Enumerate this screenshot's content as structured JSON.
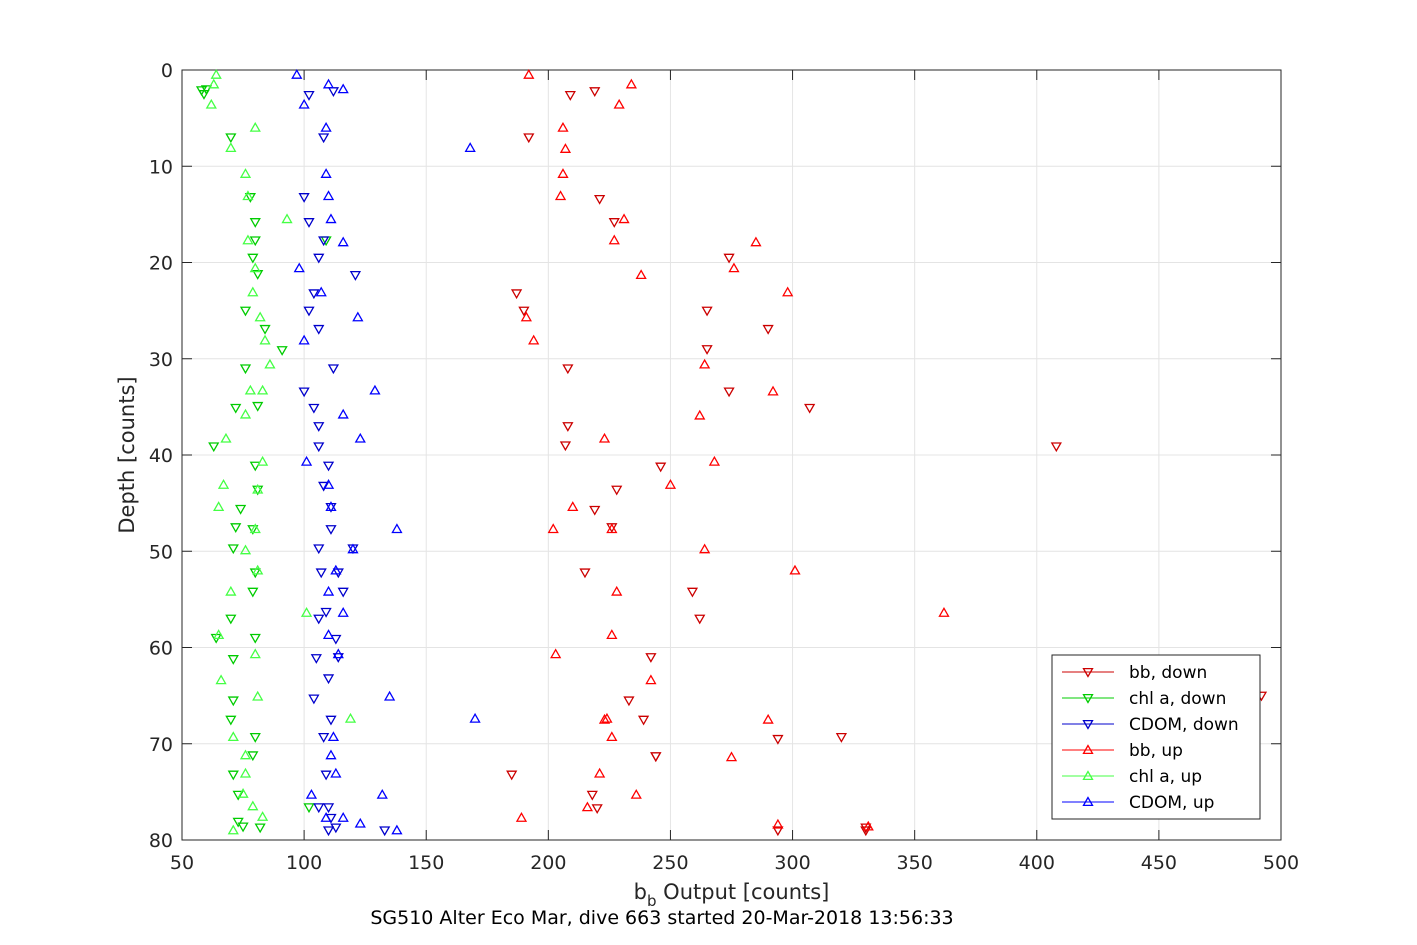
{
  "chart_data": {
    "type": "scatter",
    "xlabel_main": "b",
    "xlabel_sub": "b",
    "xlabel_rest": " Output [counts]",
    "ylabel": "Depth [counts]",
    "caption": "SG510 Alter Eco Mar, dive 663 started 20-Mar-2018 13:56:33",
    "xlim": [
      50,
      500
    ],
    "ylim": [
      0,
      80
    ],
    "y_reversed": true,
    "grid": true,
    "legend_position": "bottom-right",
    "x_ticks": [
      50,
      100,
      150,
      200,
      250,
      300,
      350,
      400,
      450,
      500
    ],
    "y_ticks": [
      0,
      10,
      20,
      30,
      40,
      50,
      60,
      70,
      80
    ],
    "x_tick_labels": [
      "50",
      "100",
      "150",
      "200",
      "250",
      "300",
      "350",
      "400",
      "450",
      "500"
    ],
    "y_tick_labels": [
      "0",
      "10",
      "20",
      "30",
      "40",
      "50",
      "60",
      "70",
      "80"
    ],
    "series": [
      {
        "name": "bb, down",
        "color": "#cc0000",
        "marker": "triangle-down",
        "x": [
          219,
          209,
          192,
          221,
          227,
          208,
          187,
          190,
          208,
          207,
          246,
          228,
          219,
          226,
          215,
          262,
          242,
          233,
          239,
          294
        ],
        "y": [
          2.2,
          2.6,
          7,
          13.4,
          15.8,
          31,
          23.2,
          25,
          37,
          39,
          41.2,
          43.6,
          45.7,
          47.5,
          52.2,
          57,
          61,
          65.5,
          67.5,
          69.5
        ]
      },
      {
        "name": "bb, down",
        "color": "#cc0000",
        "marker": "triangle-down",
        "x": [
          274,
          265,
          290,
          265,
          307,
          274,
          408,
          259,
          244,
          492,
          320,
          185,
          218,
          220,
          330,
          244,
          294,
          330
        ],
        "y": [
          19.5,
          25,
          26.9,
          29,
          35.1,
          33.4,
          39.1,
          54.2,
          71.3,
          65,
          69.3,
          73.2,
          75.3,
          76.7,
          78.7,
          71.3,
          79,
          79
        ]
      },
      {
        "name": "chl a, down",
        "color": "#00cc00",
        "marker": "triangle-down",
        "x": [
          58,
          59,
          60,
          70,
          109,
          78,
          80,
          80,
          79,
          81,
          76,
          84,
          91,
          76,
          81,
          72,
          63,
          80,
          81,
          74,
          72,
          79,
          71,
          80,
          79,
          70,
          80,
          64,
          71,
          71,
          80,
          70,
          79,
          71,
          73,
          75,
          82,
          102,
          73
        ],
        "y": [
          2.1,
          2.5,
          2,
          7,
          17.7,
          13.2,
          15.8,
          17.7,
          19.5,
          21.2,
          25,
          26.9,
          29.1,
          31,
          34.9,
          35.1,
          39.1,
          41.1,
          43.6,
          45.6,
          47.5,
          47.7,
          49.7,
          52.2,
          54.2,
          57,
          59,
          59,
          61.2,
          65.5,
          69.3,
          67.5,
          71.2,
          73.2,
          75.3,
          78.6,
          78.7,
          76.6,
          78.1
        ]
      },
      {
        "name": "CDOM, down",
        "color": "#0000cc",
        "marker": "triangle-down",
        "x": [
          112,
          102,
          108,
          100,
          102,
          108,
          106,
          121,
          104,
          102,
          106,
          112,
          100,
          104,
          106,
          106,
          110,
          108,
          111,
          111,
          106,
          120,
          107,
          114,
          116,
          106,
          113,
          109,
          105,
          114,
          110,
          111,
          109,
          110,
          113,
          108,
          104,
          106,
          111,
          110,
          133
        ],
        "y": [
          2.2,
          2.6,
          7,
          13.2,
          15.8,
          17.7,
          19.5,
          21.3,
          23.2,
          25,
          26.9,
          31,
          33.4,
          35.1,
          37,
          39.1,
          41.1,
          43.2,
          45.4,
          47.7,
          49.7,
          49.7,
          52.2,
          52.2,
          54.2,
          57,
          59.1,
          56.3,
          61.1,
          61,
          63.2,
          67.5,
          73.2,
          76.6,
          78.7,
          69.3,
          65.3,
          76.6,
          77.7,
          79.0,
          79.0
        ]
      },
      {
        "name": "bb, up",
        "color": "#ff0000",
        "marker": "triangle-up",
        "x": [
          192,
          234,
          229,
          206,
          207,
          206,
          205,
          231,
          227,
          285,
          276,
          238,
          298,
          191,
          194,
          264,
          292,
          262,
          223,
          268,
          250,
          210,
          202,
          226,
          264,
          301,
          228,
          362,
          226,
          203,
          242,
          223,
          224,
          226,
          290,
          275,
          221,
          236,
          216,
          189,
          294,
          331
        ],
        "y": [
          0.5,
          1.5,
          3.6,
          6,
          8.2,
          10.8,
          13.1,
          15.5,
          17.7,
          17.9,
          20.6,
          21.3,
          23.1,
          25.7,
          28.1,
          30.6,
          33.4,
          35.9,
          38.3,
          40.7,
          43.1,
          45.4,
          47.7,
          47.7,
          49.8,
          52,
          54.2,
          56.4,
          58.7,
          60.7,
          63.4,
          67.5,
          67.4,
          69.3,
          67.5,
          71.4,
          73.1,
          75.3,
          76.6,
          77.7,
          78.4,
          78.6
        ]
      },
      {
        "name": "chl a, up",
        "color": "#44ff44",
        "marker": "triangle-up",
        "x": [
          64,
          63,
          62,
          80,
          70,
          76,
          77,
          93,
          77,
          80,
          79,
          82,
          84,
          86,
          78,
          83,
          76,
          68,
          83,
          81,
          67,
          65,
          80,
          76,
          81,
          70,
          101,
          65,
          80,
          66,
          81,
          119,
          71,
          76,
          76,
          79,
          83,
          75,
          71
        ],
        "y": [
          0.5,
          1.5,
          3.6,
          6,
          8.1,
          10.8,
          13.1,
          15.5,
          17.7,
          20.6,
          23.1,
          25.7,
          28.1,
          30.6,
          33.3,
          33.3,
          35.8,
          38.3,
          40.7,
          43.6,
          43.1,
          45.4,
          47.7,
          49.9,
          52,
          54.2,
          56.4,
          58.7,
          60.7,
          63.4,
          65.1,
          67.4,
          69.3,
          71.2,
          73.1,
          76.5,
          77.6,
          75.2,
          79.0
        ]
      },
      {
        "name": "CDOM, up",
        "color": "#0000ff",
        "marker": "triangle-up",
        "x": [
          97,
          110,
          116,
          100,
          109,
          168,
          109,
          110,
          111,
          116,
          98,
          107,
          122,
          100,
          129,
          116,
          123,
          101,
          110,
          111,
          138,
          120,
          113,
          110,
          116,
          110,
          114,
          135,
          170,
          112,
          111,
          113,
          132,
          103,
          109,
          123,
          116,
          138
        ],
        "y": [
          0.5,
          1.5,
          2,
          3.6,
          6,
          8.1,
          10.8,
          13.1,
          15.5,
          17.9,
          20.6,
          23.1,
          25.7,
          28.1,
          33.3,
          35.8,
          38.3,
          40.7,
          43.1,
          45.4,
          47.7,
          49.8,
          52,
          54.2,
          56.4,
          58.7,
          60.7,
          65.1,
          67.4,
          69.3,
          71.2,
          73.1,
          75.3,
          75.3,
          77.7,
          78.3,
          77.7,
          79.0
        ]
      }
    ],
    "legend": [
      {
        "label": "bb, down",
        "color": "#cc0000",
        "marker": "triangle-down"
      },
      {
        "label": "chl a, down",
        "color": "#00cc00",
        "marker": "triangle-down"
      },
      {
        "label": "CDOM, down",
        "color": "#0000cc",
        "marker": "triangle-down"
      },
      {
        "label": "bb, up",
        "color": "#ff0000",
        "marker": "triangle-up"
      },
      {
        "label": "chl a, up",
        "color": "#44ff44",
        "marker": "triangle-up"
      },
      {
        "label": "CDOM, up",
        "color": "#0000ff",
        "marker": "triangle-up"
      }
    ]
  }
}
